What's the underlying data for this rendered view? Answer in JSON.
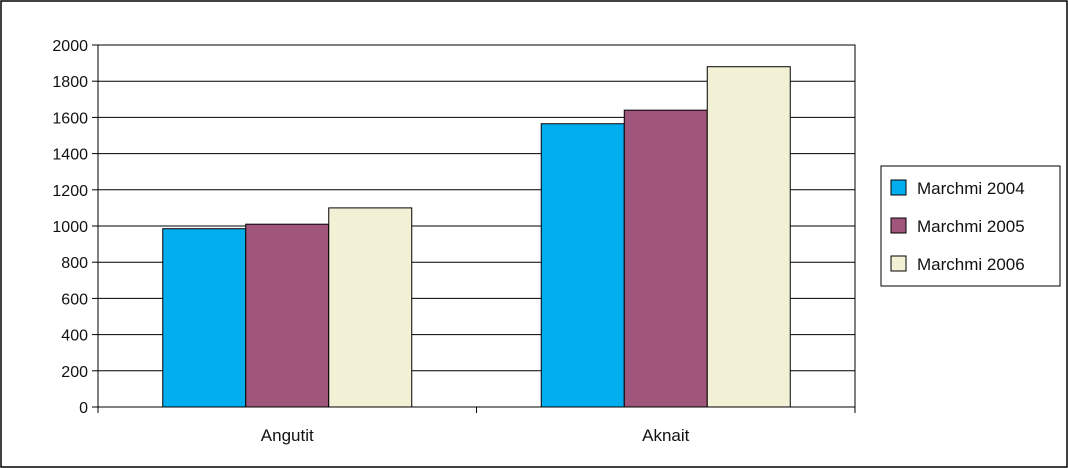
{
  "chart_data": {
    "type": "bar",
    "title": "",
    "xlabel": "",
    "ylabel": "",
    "categories": [
      "Angutit",
      "Aknait"
    ],
    "series": [
      {
        "name": "Marchmi 2004",
        "values": [
          985,
          1565
        ],
        "color": "#00AEEF"
      },
      {
        "name": "Marchmi 2005",
        "values": [
          1010,
          1640
        ],
        "color": "#A0567A"
      },
      {
        "name": "Marchmi 2006",
        "values": [
          1100,
          1880
        ],
        "color": "#F3F1D5"
      }
    ],
    "ylim": [
      0,
      2000
    ],
    "yticks": [
      "0",
      "200",
      "400",
      "600",
      "800",
      "1000",
      "1200",
      "1400",
      "1600",
      "1800",
      "2000"
    ],
    "grid": true,
    "legend": "right"
  }
}
